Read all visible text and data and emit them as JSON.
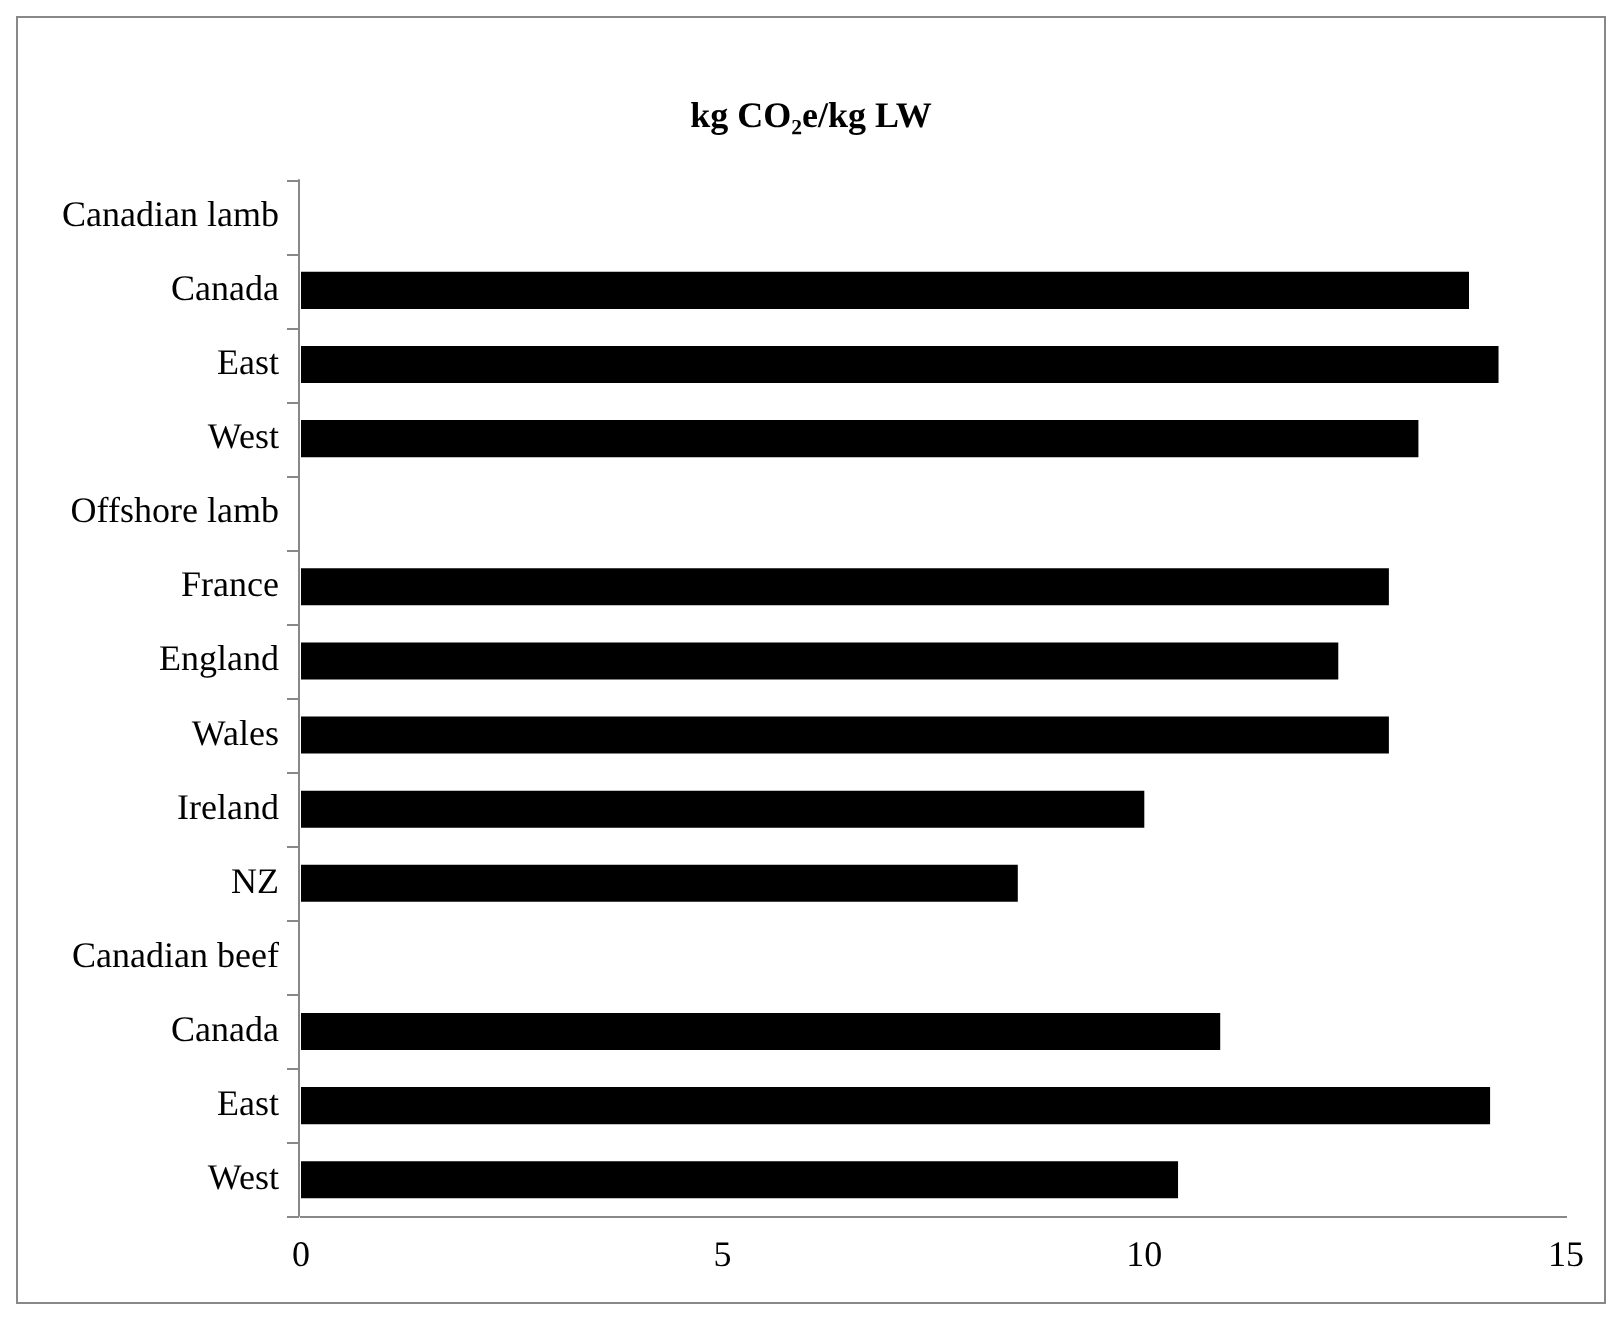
{
  "chart_data": {
    "type": "bar",
    "orientation": "horizontal",
    "title": "kg CO₂e/kg LW",
    "categories": [
      "Canadian lamb",
      "Canada",
      "East",
      "West",
      "Offshore lamb",
      "France",
      "England",
      "Wales",
      "Ireland",
      "NZ",
      "Canadian beef",
      "Canada",
      "East",
      "West"
    ],
    "values": [
      null,
      13.85,
      14.2,
      13.25,
      null,
      12.9,
      12.3,
      12.9,
      10.0,
      8.5,
      null,
      10.9,
      14.1,
      10.4
    ],
    "color": "#000000",
    "xlim": [
      0,
      15
    ],
    "xticks": [
      0,
      5,
      10,
      15
    ],
    "grid": false,
    "legend": false
  }
}
